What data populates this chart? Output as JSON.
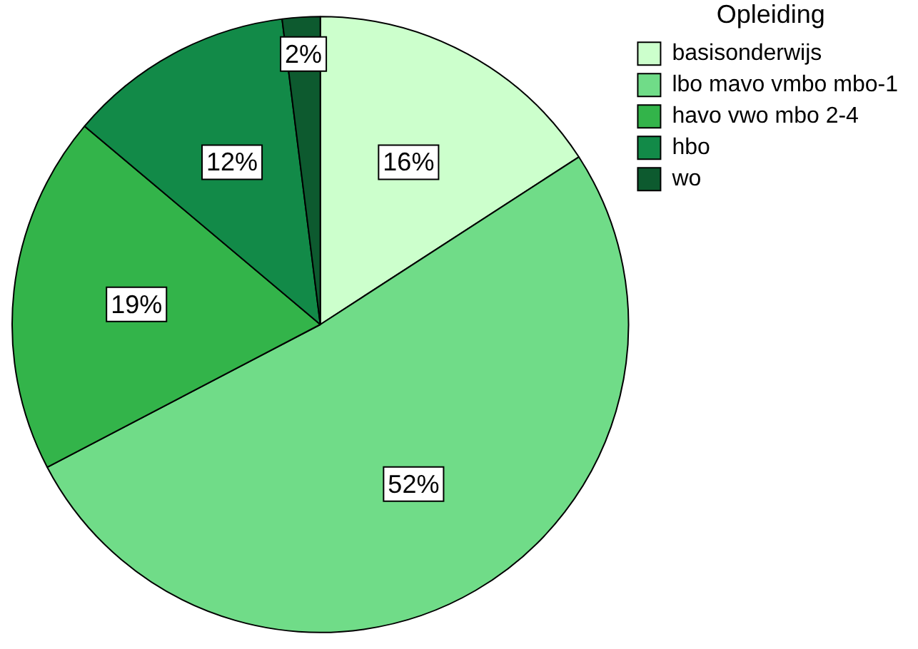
{
  "chart_data": {
    "type": "pie",
    "legend_title": "Opleiding",
    "categories": [
      "basisonderwijs",
      "lbo mavo vmbo mbo-1",
      "havo vwo mbo 2-4",
      "hbo",
      "wo"
    ],
    "values": [
      16,
      52,
      19,
      12,
      2
    ],
    "colors": [
      "#ccffcc",
      "#70dc88",
      "#33b44a",
      "#128a48",
      "#0d5a2f"
    ],
    "value_labels": [
      "16%",
      "52%",
      "19%",
      "12%",
      "2%"
    ],
    "legend": "top right"
  }
}
